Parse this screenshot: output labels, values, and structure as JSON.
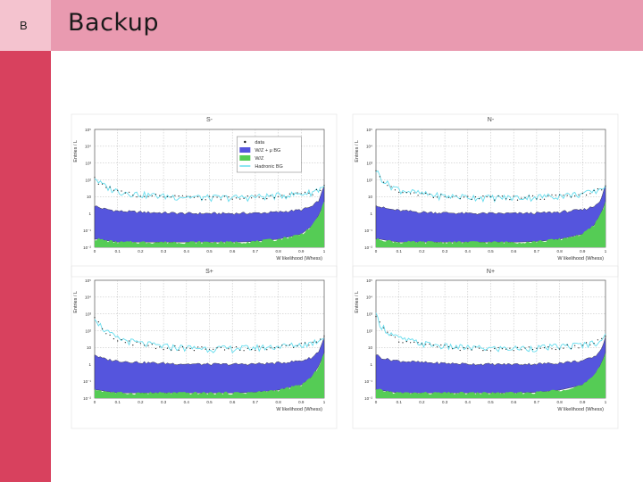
{
  "slide": {
    "marker": "B",
    "title": "Backup"
  },
  "colors": {
    "header": "#e99ab0",
    "sidebar": "#d8415e",
    "corner": "#f4c3cf",
    "wz_mu_bg": "#5555dd",
    "wz": "#55cc55",
    "hadronic_bg": "#66ddee",
    "data": "#111111"
  },
  "chart_data": [
    {
      "type": "area",
      "title": "S-",
      "xlabel": "W likelihood (Whess)",
      "ylabel": "Entries / L",
      "log_y": true,
      "xlim": [
        0,
        1
      ],
      "ylim": [
        0.01,
        100000
      ],
      "grid": true,
      "x_ticks": [
        "0",
        "0.1",
        "0.2",
        "0.3",
        "0.4",
        "0.5",
        "0.6",
        "0.7",
        "0.8",
        "0.9",
        "1"
      ],
      "y_ticks": [
        "10⁻²",
        "10⁻¹",
        "1",
        "10",
        "10²",
        "10³",
        "10⁴",
        "10⁵"
      ],
      "legend": {
        "position": "top-right",
        "entries": [
          "data",
          "W/Z + μ BG",
          "W/Z",
          "Hadronic BG"
        ]
      },
      "x": [
        0.0,
        0.02,
        0.05,
        0.1,
        0.2,
        0.3,
        0.4,
        0.5,
        0.6,
        0.7,
        0.8,
        0.9,
        0.95,
        0.98,
        1.0
      ],
      "series": [
        {
          "name": "W/Z + μ BG",
          "values": [
            3.0,
            2.2,
            1.8,
            1.4,
            1.2,
            1.1,
            1.0,
            1.0,
            1.0,
            1.05,
            1.2,
            1.6,
            2.5,
            6,
            40
          ]
        },
        {
          "name": "W/Z",
          "values": [
            0.03,
            0.03,
            0.025,
            0.02,
            0.02,
            0.02,
            0.02,
            0.02,
            0.02,
            0.022,
            0.03,
            0.06,
            0.2,
            1.0,
            5
          ]
        },
        {
          "name": "Hadronic BG",
          "values": [
            150,
            70,
            40,
            22,
            14,
            11,
            10,
            9,
            9,
            10,
            12,
            15,
            20,
            30,
            50
          ]
        },
        {
          "name": "data",
          "values": [
            120,
            60,
            35,
            20,
            13,
            10,
            9,
            8.5,
            8.5,
            9.5,
            11,
            14,
            18,
            28,
            45
          ]
        }
      ]
    },
    {
      "type": "area",
      "title": "N-",
      "xlabel": "W likelihood (Whess)",
      "ylabel": "Entries / L",
      "log_y": true,
      "xlim": [
        0,
        1
      ],
      "ylim": [
        0.01,
        100000
      ],
      "grid": true,
      "x_ticks": [
        "0",
        "0.1",
        "0.2",
        "0.3",
        "0.4",
        "0.5",
        "0.6",
        "0.7",
        "0.8",
        "0.9",
        "1"
      ],
      "y_ticks": [
        "10⁻²",
        "10⁻¹",
        "1",
        "10",
        "10²",
        "10³",
        "10⁴",
        "10⁵"
      ],
      "x": [
        0.0,
        0.02,
        0.05,
        0.1,
        0.2,
        0.3,
        0.4,
        0.5,
        0.6,
        0.7,
        0.8,
        0.9,
        0.95,
        0.98,
        1.0
      ],
      "series": [
        {
          "name": "W/Z + μ BG",
          "values": [
            3.5,
            2.4,
            1.9,
            1.5,
            1.2,
            1.1,
            1.0,
            1.0,
            1.0,
            1.05,
            1.2,
            1.6,
            2.5,
            6,
            40
          ]
        },
        {
          "name": "W/Z",
          "values": [
            0.03,
            0.03,
            0.025,
            0.02,
            0.02,
            0.02,
            0.02,
            0.02,
            0.02,
            0.022,
            0.03,
            0.06,
            0.2,
            1.0,
            5
          ]
        },
        {
          "name": "Hadronic BG",
          "values": [
            400,
            150,
            60,
            28,
            15,
            11,
            10,
            9,
            9,
            10,
            12,
            15,
            20,
            30,
            50
          ]
        },
        {
          "name": "data",
          "values": [
            350,
            130,
            55,
            25,
            14,
            10,
            9,
            8.5,
            8.5,
            9.5,
            11,
            14,
            18,
            28,
            45
          ]
        }
      ]
    },
    {
      "type": "area",
      "title": "S+",
      "xlabel": "W likelihood (Whess)",
      "ylabel": "Entries / L",
      "log_y": true,
      "xlim": [
        0,
        1
      ],
      "ylim": [
        0.01,
        100000
      ],
      "grid": true,
      "x_ticks": [
        "0",
        "0.1",
        "0.2",
        "0.3",
        "0.4",
        "0.5",
        "0.6",
        "0.7",
        "0.8",
        "0.9",
        "1"
      ],
      "y_ticks": [
        "10⁻²",
        "10⁻¹",
        "1",
        "10",
        "10²",
        "10³",
        "10⁴",
        "10⁵"
      ],
      "x": [
        0.0,
        0.02,
        0.05,
        0.1,
        0.2,
        0.3,
        0.4,
        0.5,
        0.6,
        0.7,
        0.8,
        0.9,
        0.95,
        0.98,
        1.0
      ],
      "series": [
        {
          "name": "W/Z + μ BG",
          "values": [
            4.0,
            2.6,
            2.0,
            1.6,
            1.3,
            1.15,
            1.05,
            1.0,
            1.0,
            1.05,
            1.2,
            1.6,
            2.5,
            6,
            40
          ]
        },
        {
          "name": "W/Z",
          "values": [
            0.03,
            0.03,
            0.025,
            0.02,
            0.02,
            0.02,
            0.02,
            0.02,
            0.02,
            0.022,
            0.03,
            0.06,
            0.2,
            1.0,
            5
          ]
        },
        {
          "name": "Hadronic BG",
          "values": [
            800,
            250,
            90,
            35,
            18,
            12,
            10,
            9,
            9,
            10,
            12,
            15,
            20,
            30,
            50
          ]
        },
        {
          "name": "data",
          "values": [
            700,
            220,
            80,
            30,
            16,
            11,
            9,
            8.5,
            8.5,
            9.5,
            11,
            14,
            18,
            28,
            45
          ]
        }
      ]
    },
    {
      "type": "area",
      "title": "N+",
      "xlabel": "W likelihood (Whess)",
      "ylabel": "Entries / L",
      "log_y": true,
      "xlim": [
        0,
        1
      ],
      "ylim": [
        0.01,
        100000
      ],
      "grid": true,
      "x_ticks": [
        "0",
        "0.1",
        "0.2",
        "0.3",
        "0.4",
        "0.5",
        "0.6",
        "0.7",
        "0.8",
        "0.9",
        "1"
      ],
      "y_ticks": [
        "10⁻²",
        "10⁻¹",
        "1",
        "10",
        "10²",
        "10³",
        "10⁴",
        "10⁵"
      ],
      "x": [
        0.0,
        0.02,
        0.05,
        0.1,
        0.2,
        0.3,
        0.4,
        0.5,
        0.6,
        0.7,
        0.8,
        0.9,
        0.95,
        0.98,
        1.0
      ],
      "series": [
        {
          "name": "W/Z + μ BG",
          "values": [
            4.0,
            2.6,
            2.0,
            1.6,
            1.3,
            1.15,
            1.05,
            1.0,
            1.0,
            1.05,
            1.2,
            1.6,
            2.5,
            6,
            40
          ]
        },
        {
          "name": "W/Z",
          "values": [
            0.03,
            0.03,
            0.025,
            0.02,
            0.02,
            0.02,
            0.02,
            0.02,
            0.02,
            0.022,
            0.03,
            0.06,
            0.2,
            1.0,
            5
          ]
        },
        {
          "name": "Hadronic BG",
          "values": [
            800,
            250,
            90,
            35,
            18,
            12,
            10,
            9,
            9,
            10,
            12,
            15,
            20,
            30,
            50
          ]
        },
        {
          "name": "data",
          "values": [
            700,
            220,
            80,
            30,
            16,
            11,
            9,
            8.5,
            8.5,
            9.5,
            11,
            14,
            18,
            28,
            45
          ]
        }
      ]
    }
  ]
}
